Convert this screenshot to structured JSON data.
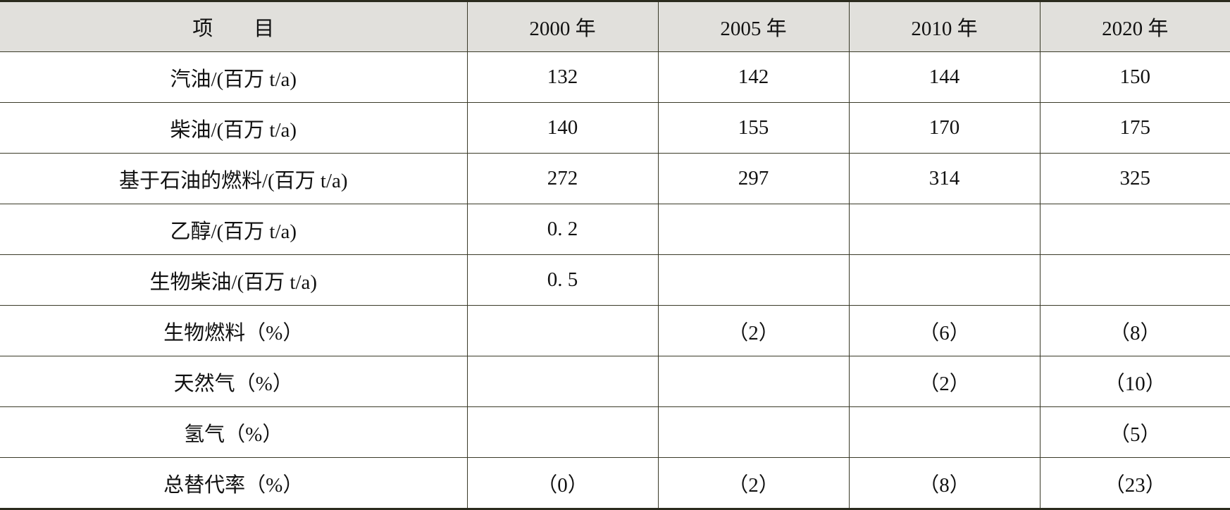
{
  "table": {
    "header": [
      "项　　目",
      "2000 年",
      "2005 年",
      "2010 年",
      "2020 年"
    ],
    "rows": [
      [
        "汽油/(百万 t/a)",
        "132",
        "142",
        "144",
        "150"
      ],
      [
        "柴油/(百万 t/a)",
        "140",
        "155",
        "170",
        "175"
      ],
      [
        "基于石油的燃料/(百万 t/a)",
        "272",
        "297",
        "314",
        "325"
      ],
      [
        "乙醇/(百万 t/a)",
        "0. 2",
        null,
        null,
        null
      ],
      [
        "生物柴油/(百万 t/a)",
        "0. 5",
        null,
        null,
        null
      ],
      [
        "生物燃料（%）",
        null,
        "（2）",
        "（6）",
        "（8）"
      ],
      [
        "天然气（%）",
        null,
        null,
        "（2）",
        "（10）"
      ],
      [
        "氢气（%）",
        null,
        null,
        null,
        "（5）"
      ],
      [
        "总替代率（%）",
        "（0）",
        "（2）",
        "（8）",
        "（23）"
      ]
    ]
  }
}
